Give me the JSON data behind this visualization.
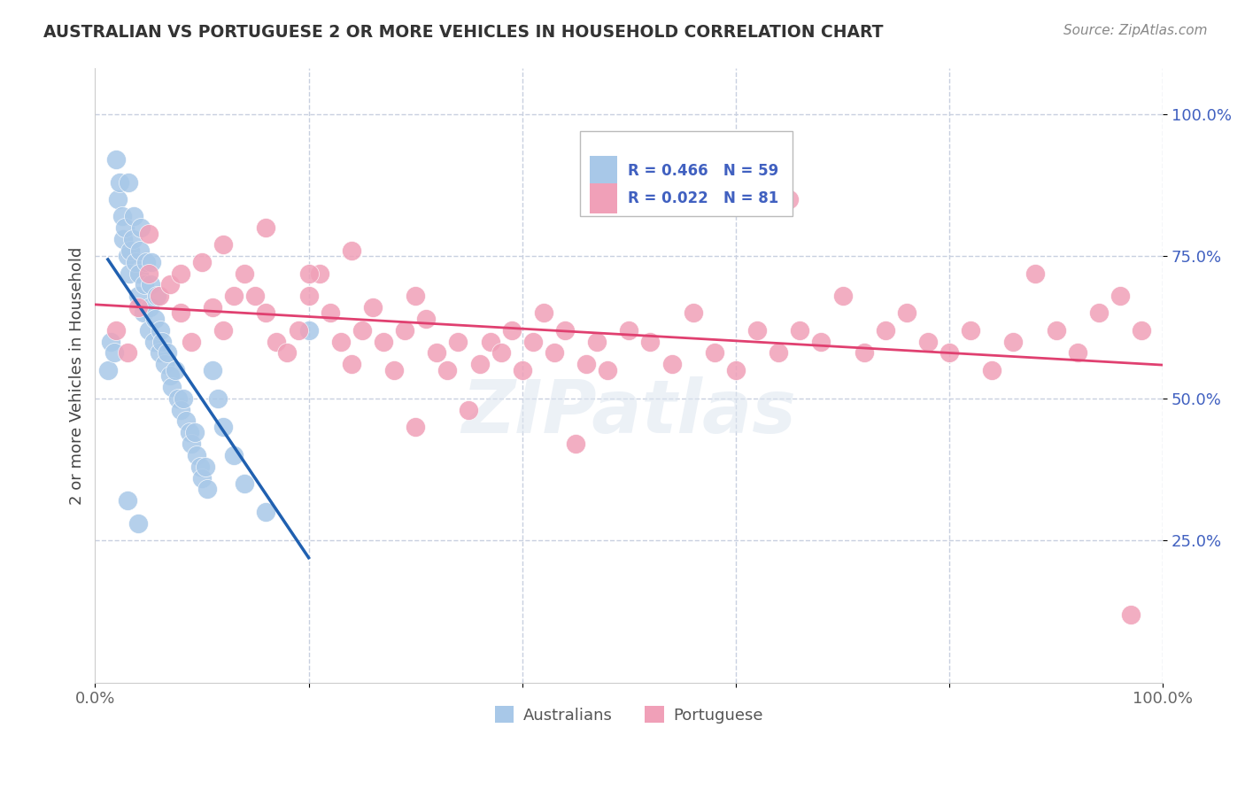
{
  "title": "AUSTRALIAN VS PORTUGUESE 2 OR MORE VEHICLES IN HOUSEHOLD CORRELATION CHART",
  "source": "Source: ZipAtlas.com",
  "ylabel": "2 or more Vehicles in Household",
  "xlim": [
    0,
    100
  ],
  "ylim": [
    0,
    108
  ],
  "xtick_labels": [
    "0.0%",
    "",
    "",
    "",
    "",
    "100.0%"
  ],
  "xtick_vals": [
    0,
    20,
    40,
    60,
    80,
    100
  ],
  "ytick_labels": [
    "25.0%",
    "50.0%",
    "75.0%",
    "100.0%"
  ],
  "ytick_vals": [
    25,
    50,
    75,
    100
  ],
  "legend_bottom_labels": [
    "Australians",
    "Portuguese"
  ],
  "blue_color": "#a8c8e8",
  "pink_color": "#f0a0b8",
  "blue_line_color": "#2060b0",
  "pink_line_color": "#e04070",
  "ytick_color": "#4060c0",
  "background_color": "#ffffff",
  "grid_color": "#c8d0e0",
  "R_blue": 0.466,
  "N_blue": 59,
  "R_pink": 0.022,
  "N_pink": 81,
  "blue_x": [
    1.2,
    1.5,
    1.8,
    2.0,
    2.1,
    2.3,
    2.5,
    2.6,
    2.8,
    3.0,
    3.1,
    3.2,
    3.3,
    3.5,
    3.6,
    3.8,
    4.0,
    4.1,
    4.2,
    4.3,
    4.5,
    4.6,
    4.8,
    5.0,
    5.1,
    5.2,
    5.3,
    5.5,
    5.6,
    5.8,
    6.0,
    6.1,
    6.3,
    6.5,
    6.8,
    7.0,
    7.2,
    7.5,
    7.8,
    8.0,
    8.3,
    8.5,
    8.8,
    9.0,
    9.3,
    9.5,
    9.8,
    10.0,
    10.3,
    10.5,
    11.0,
    11.5,
    12.0,
    13.0,
    14.0,
    16.0,
    20.0,
    3.0,
    4.0
  ],
  "blue_y": [
    55,
    60,
    58,
    92,
    85,
    88,
    82,
    78,
    80,
    75,
    88,
    72,
    76,
    78,
    82,
    74,
    68,
    72,
    76,
    80,
    65,
    70,
    74,
    62,
    66,
    70,
    74,
    60,
    64,
    68,
    58,
    62,
    60,
    56,
    58,
    54,
    52,
    55,
    50,
    48,
    50,
    46,
    44,
    42,
    44,
    40,
    38,
    36,
    38,
    34,
    55,
    50,
    45,
    40,
    35,
    30,
    62,
    32,
    28
  ],
  "pink_x": [
    2.0,
    3.0,
    4.0,
    5.0,
    6.0,
    7.0,
    8.0,
    9.0,
    10.0,
    11.0,
    12.0,
    13.0,
    14.0,
    15.0,
    16.0,
    17.0,
    18.0,
    19.0,
    20.0,
    21.0,
    22.0,
    23.0,
    24.0,
    25.0,
    26.0,
    27.0,
    28.0,
    29.0,
    30.0,
    31.0,
    32.0,
    33.0,
    34.0,
    35.0,
    36.0,
    37.0,
    38.0,
    39.0,
    40.0,
    41.0,
    42.0,
    43.0,
    44.0,
    45.0,
    46.0,
    47.0,
    48.0,
    50.0,
    52.0,
    54.0,
    56.0,
    58.0,
    60.0,
    62.0,
    64.0,
    66.0,
    68.0,
    70.0,
    72.0,
    74.0,
    76.0,
    78.0,
    80.0,
    82.0,
    84.0,
    86.0,
    88.0,
    90.0,
    92.0,
    94.0,
    96.0,
    98.0,
    5.0,
    8.0,
    12.0,
    16.0,
    20.0,
    24.0,
    30.0,
    65.0,
    97.0
  ],
  "pink_y": [
    62,
    58,
    66,
    72,
    68,
    70,
    65,
    60,
    74,
    66,
    62,
    68,
    72,
    68,
    65,
    60,
    58,
    62,
    68,
    72,
    65,
    60,
    56,
    62,
    66,
    60,
    55,
    62,
    68,
    64,
    58,
    55,
    60,
    48,
    56,
    60,
    58,
    62,
    55,
    60,
    65,
    58,
    62,
    42,
    56,
    60,
    55,
    62,
    60,
    56,
    65,
    58,
    55,
    62,
    58,
    62,
    60,
    68,
    58,
    62,
    65,
    60,
    58,
    62,
    55,
    60,
    72,
    62,
    58,
    65,
    68,
    62,
    79,
    72,
    77,
    80,
    72,
    76,
    45,
    85,
    12
  ]
}
